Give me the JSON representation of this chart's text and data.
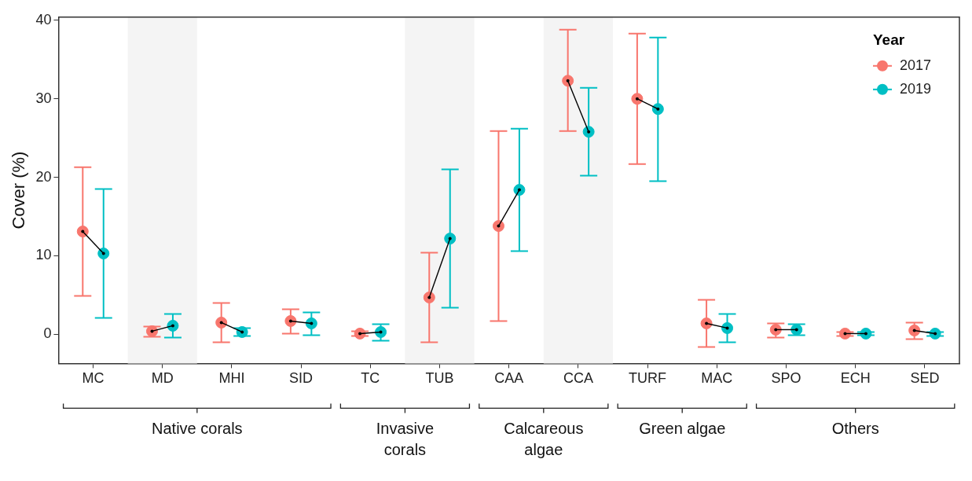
{
  "chart_data": {
    "type": "scatter",
    "ylabel": "Cover (%)",
    "categories": [
      "MC",
      "MD",
      "MHI",
      "SID",
      "TC",
      "TUB",
      "CAA",
      "CCA",
      "TURF",
      "MAC",
      "SPO",
      "ECH",
      "SED"
    ],
    "series": [
      {
        "name": "2017",
        "color": "#f8766d",
        "values": [
          13.1,
          0.4,
          1.5,
          1.7,
          0.1,
          4.7,
          13.8,
          32.3,
          30.0,
          1.4,
          0.6,
          0.1,
          0.5
        ],
        "errors": [
          [
            4.9,
            21.3
          ],
          [
            -0.3,
            1.0
          ],
          [
            -1.0,
            4.0
          ],
          [
            0.1,
            3.2
          ],
          [
            -0.2,
            0.4
          ],
          [
            -1.0,
            10.4
          ],
          [
            1.7,
            25.9
          ],
          [
            25.9,
            38.8
          ],
          [
            21.7,
            38.3
          ],
          [
            -1.6,
            4.4
          ],
          [
            -0.4,
            1.4
          ],
          [
            -0.2,
            0.3
          ],
          [
            -0.6,
            1.5
          ]
        ]
      },
      {
        "name": "2019",
        "color": "#00bfc4",
        "values": [
          10.3,
          1.1,
          0.3,
          1.4,
          0.3,
          12.2,
          18.4,
          25.8,
          28.7,
          0.8,
          0.6,
          0.1,
          0.1
        ],
        "errors": [
          [
            2.1,
            18.5
          ],
          [
            -0.4,
            2.6
          ],
          [
            -0.2,
            0.8
          ],
          [
            -0.1,
            2.8
          ],
          [
            -0.8,
            1.3
          ],
          [
            3.4,
            21.0
          ],
          [
            10.6,
            26.2
          ],
          [
            20.2,
            31.4
          ],
          [
            19.5,
            37.8
          ],
          [
            -1.0,
            2.6
          ],
          [
            -0.1,
            1.3
          ],
          [
            -0.1,
            0.3
          ],
          [
            -0.2,
            0.3
          ]
        ]
      }
    ],
    "ylim": [
      -3.7,
      40.4
    ],
    "yticks": [
      0,
      10,
      20,
      30,
      40
    ],
    "grid": false,
    "legend": "top right",
    "legend_title": "Year",
    "marker": "circle",
    "bands": [
      {
        "axis": "x",
        "from": "MD",
        "to": "MD",
        "color": "#f4f4f4"
      },
      {
        "axis": "x",
        "from": "TUB",
        "to": "TUB",
        "color": "#f4f4f4"
      },
      {
        "axis": "x",
        "from": "CCA",
        "to": "CCA",
        "color": "#f4f4f4"
      }
    ],
    "annotations": [
      "Native corals",
      "Invasive corals",
      "Calcareous algae",
      "Green algae",
      "Others"
    ]
  }
}
